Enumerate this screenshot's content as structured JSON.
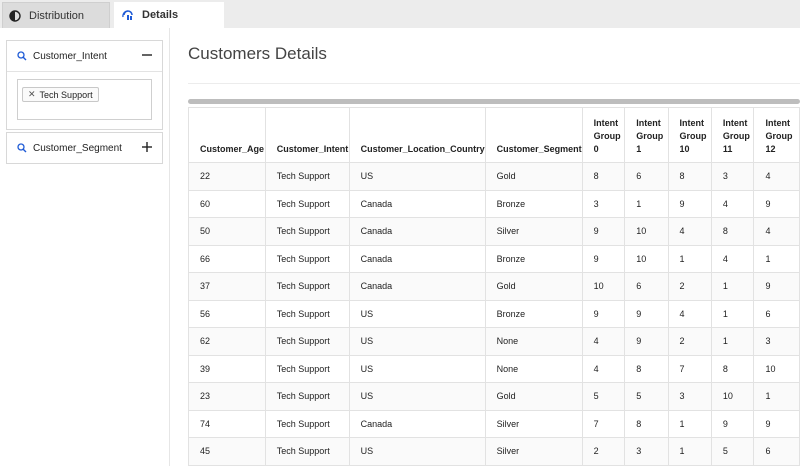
{
  "tabs": [
    {
      "label": "Distribution",
      "icon": "half-circle-icon",
      "active": false
    },
    {
      "label": "Details",
      "icon": "details-icon",
      "active": true
    }
  ],
  "sidebar": {
    "filters": [
      {
        "label": "Customer_Intent",
        "expanded": true,
        "toggle": "minus-icon",
        "selected": [
          "Tech Support"
        ]
      },
      {
        "label": "Customer_Segment",
        "expanded": false,
        "toggle": "plus-icon"
      }
    ]
  },
  "main": {
    "title": "Customers Details",
    "table": {
      "columns": [
        "Customer_Age",
        "Customer_Intent",
        "Customer_Location_Country",
        "Customer_Segment",
        "Intent Group 0",
        "Intent Group 1",
        "Intent Group 10",
        "Intent Group 11",
        "Intent Group 12"
      ],
      "rows": [
        [
          "22",
          "Tech Support",
          "US",
          "Gold",
          "8",
          "6",
          "8",
          "3",
          "4"
        ],
        [
          "60",
          "Tech Support",
          "Canada",
          "Bronze",
          "3",
          "1",
          "9",
          "4",
          "9"
        ],
        [
          "50",
          "Tech Support",
          "Canada",
          "Silver",
          "9",
          "10",
          "4",
          "8",
          "4"
        ],
        [
          "66",
          "Tech Support",
          "Canada",
          "Bronze",
          "9",
          "10",
          "1",
          "4",
          "1"
        ],
        [
          "37",
          "Tech Support",
          "Canada",
          "Gold",
          "10",
          "6",
          "2",
          "1",
          "9"
        ],
        [
          "56",
          "Tech Support",
          "US",
          "Bronze",
          "9",
          "9",
          "4",
          "1",
          "6"
        ],
        [
          "62",
          "Tech Support",
          "US",
          "None",
          "4",
          "9",
          "2",
          "1",
          "3"
        ],
        [
          "39",
          "Tech Support",
          "US",
          "None",
          "4",
          "8",
          "7",
          "8",
          "10"
        ],
        [
          "23",
          "Tech Support",
          "US",
          "Gold",
          "5",
          "5",
          "3",
          "10",
          "1"
        ],
        [
          "74",
          "Tech Support",
          "Canada",
          "Silver",
          "7",
          "8",
          "1",
          "9",
          "9"
        ],
        [
          "45",
          "Tech Support",
          "US",
          "Silver",
          "2",
          "3",
          "1",
          "5",
          "6"
        ]
      ]
    }
  },
  "colors": {
    "accent": "#1f5bd6",
    "border": "#e2e2e2",
    "row_alt": "#fafafa"
  }
}
